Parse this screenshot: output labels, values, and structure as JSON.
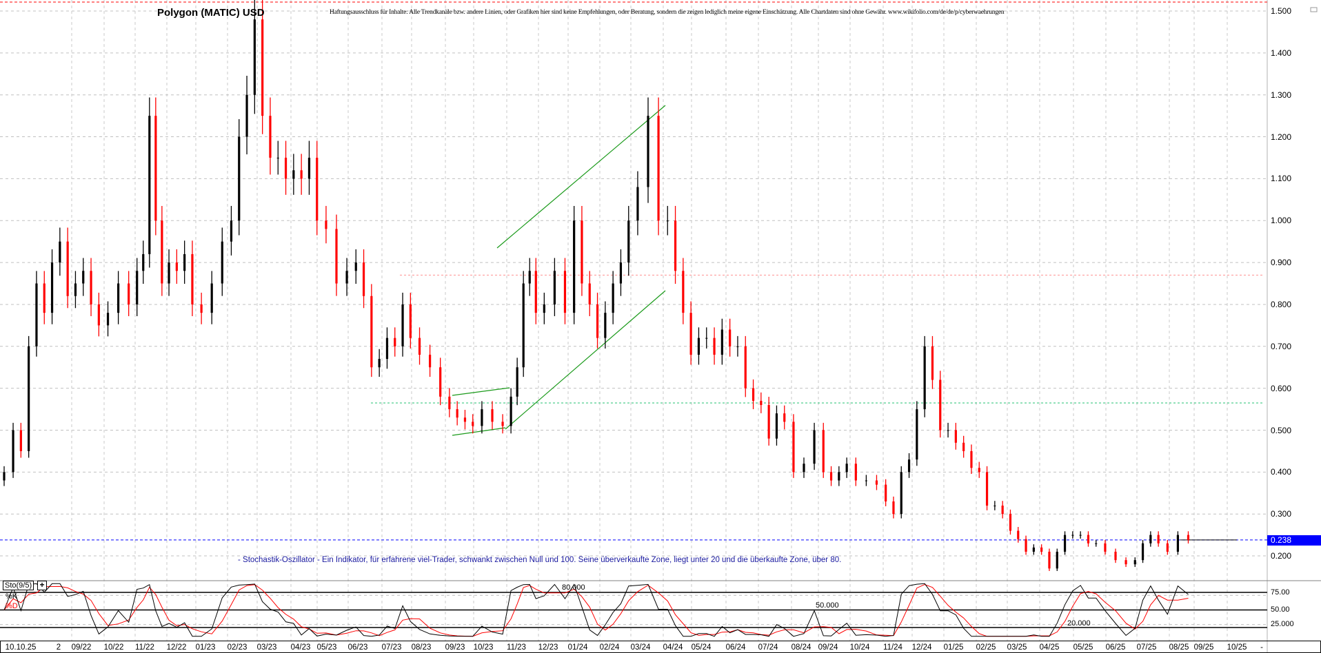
{
  "title": "Polygon (MATIC) USD",
  "disclaimer": "Haftungsausschluss für Inhalte: Alle Trendkanäle bzw. andere Linien, oder Grafiken hier sind keine Empfehlungen, oder Beratung, sondern die zeigen lediglich meine eigene Einschätzung. Alle Chartdaten sind ohne Gewähr.  www.wikifolio.com/de/de/p/cyberwaehrungen",
  "note": "- Stochastik-Oszillator - Ein Indikator, für erfahrene viel-Trader, schwankt zwischen Null und 100. Seine überverkaufte Zone, liegt unter 20 und die überkaufte Zone, über 80.",
  "current_price": "0.238",
  "colors": {
    "up": "#000000",
    "down": "#ff0000",
    "current_line": "#0000ff",
    "trend": "#1a9a1a",
    "resistance": "#ff4040",
    "support": "#20c070",
    "k_line": "#000000",
    "d_line": "#ff0000"
  },
  "stochastic": {
    "label": "Sto(9/5)",
    "k_label": "%K",
    "d_label": "%D",
    "level_80": "80.000",
    "level_50": "50.000",
    "level_20": "20.000",
    "axis": [
      "75.00",
      "50.00",
      "25.000"
    ]
  },
  "x_axis_labels": [
    "10.10.25",
    "2",
    "09/22",
    "10/22",
    "11/22",
    "12/22",
    "01/23",
    "02/23",
    "03/23",
    "04/23",
    "05/23",
    "06/23",
    "07/23",
    "08/23",
    "09/23",
    "10/23",
    "11/23",
    "12/23",
    "01/24",
    "02/24",
    "03/24",
    "04/24",
    "05/24",
    "06/24",
    "07/24",
    "08/24",
    "09/24",
    "10/24",
    "11/24",
    "12/24",
    "01/25",
    "02/25",
    "03/25",
    "04/25",
    "05/25",
    "06/25",
    "07/25",
    "08/25",
    "09/25",
    "10/25",
    "-"
  ],
  "chart_data": {
    "type": "candlestick",
    "title": "Polygon (MATIC) USD",
    "y_ticks": [
      "1.500",
      "1.400",
      "1.300",
      "1.200",
      "1.100",
      "1.000",
      "0.900",
      "0.800",
      "0.700",
      "0.600",
      "0.500",
      "0.400",
      "0.300",
      "0.200"
    ],
    "ylim": [
      0.2,
      1.5
    ],
    "grid": true,
    "horizontal_lines": [
      0.87,
      0.565,
      0.238
    ],
    "closes_by_month": [
      {
        "month": "06/22",
        "closes": [
          0.4
        ]
      },
      {
        "month": "07/22",
        "closes": [
          0.5,
          0.45,
          0.7,
          0.85
        ]
      },
      {
        "month": "08/22",
        "closes": [
          0.78,
          0.9,
          0.95,
          0.82
        ]
      },
      {
        "month": "09/22",
        "closes": [
          0.85,
          0.88,
          0.8,
          0.75
        ]
      },
      {
        "month": "10/22",
        "closes": [
          0.78,
          0.85,
          0.8
        ]
      },
      {
        "month": "11/22",
        "closes": [
          0.88,
          0.92,
          1.25,
          1.0,
          0.85
        ]
      },
      {
        "month": "12/22",
        "closes": [
          0.9,
          0.88,
          0.92,
          0.8
        ]
      },
      {
        "month": "01/23",
        "closes": [
          0.78,
          0.85,
          0.95
        ]
      },
      {
        "month": "02/23",
        "closes": [
          1.0,
          1.2,
          1.3,
          1.48
        ]
      },
      {
        "month": "03/23",
        "closes": [
          1.25,
          1.15,
          1.15,
          1.1
        ]
      },
      {
        "month": "04/23",
        "closes": [
          1.12,
          1.1,
          1.15,
          1.0
        ]
      },
      {
        "month": "05/23",
        "closes": [
          0.98,
          0.85,
          0.88
        ]
      },
      {
        "month": "06/23",
        "closes": [
          0.9,
          0.82,
          0.65,
          0.67
        ]
      },
      {
        "month": "07/23",
        "closes": [
          0.72,
          0.7,
          0.8,
          0.72
        ]
      },
      {
        "month": "08/23",
        "closes": [
          0.68,
          0.65,
          0.58
        ]
      },
      {
        "month": "09/23",
        "closes": [
          0.55,
          0.53,
          0.52,
          0.51
        ]
      },
      {
        "month": "10/23",
        "closes": [
          0.55,
          0.52,
          0.51
        ]
      },
      {
        "month": "11/23",
        "closes": [
          0.58,
          0.65,
          0.85,
          0.88,
          0.78
        ]
      },
      {
        "month": "12/23",
        "closes": [
          0.8,
          0.88,
          0.78
        ]
      },
      {
        "month": "01/24",
        "closes": [
          1.0,
          0.85,
          0.8,
          0.72
        ]
      },
      {
        "month": "02/24",
        "closes": [
          0.78,
          0.85,
          0.9,
          1.0
        ]
      },
      {
        "month": "03/24",
        "closes": [
          1.08,
          1.25,
          1.0
        ]
      },
      {
        "month": "04/24",
        "closes": [
          1.0,
          0.88,
          0.78,
          0.68
        ]
      },
      {
        "month": "05/24",
        "closes": [
          0.72,
          0.72,
          0.68,
          0.74
        ]
      },
      {
        "month": "06/24",
        "closes": [
          0.7,
          0.7,
          0.6,
          0.57
        ]
      },
      {
        "month": "07/24",
        "closes": [
          0.56,
          0.48,
          0.54,
          0.52
        ]
      },
      {
        "month": "08/24",
        "closes": [
          0.4,
          0.42,
          0.5
        ]
      },
      {
        "month": "09/24",
        "closes": [
          0.4,
          0.38,
          0.4,
          0.42
        ]
      },
      {
        "month": "10/24",
        "closes": [
          0.38,
          0.38,
          0.37
        ]
      },
      {
        "month": "11/24",
        "closes": [
          0.33,
          0.3,
          0.4,
          0.43
        ]
      },
      {
        "month": "12/24",
        "closes": [
          0.55,
          0.7,
          0.62,
          0.5
        ]
      },
      {
        "month": "01/25",
        "closes": [
          0.5,
          0.47,
          0.45,
          0.41
        ]
      },
      {
        "month": "02/25",
        "closes": [
          0.4,
          0.32,
          0.32,
          0.3
        ]
      },
      {
        "month": "03/25",
        "closes": [
          0.26,
          0.24,
          0.21,
          0.22
        ]
      },
      {
        "month": "04/25",
        "closes": [
          0.21,
          0.17,
          0.21,
          0.25
        ]
      },
      {
        "month": "05/25",
        "closes": [
          0.25,
          0.25,
          0.23,
          0.23
        ]
      },
      {
        "month": "06/25",
        "closes": [
          0.21,
          0.19,
          0.18
        ]
      },
      {
        "month": "07/25",
        "closes": [
          0.19,
          0.23,
          0.25,
          0.23
        ]
      },
      {
        "month": "08/25",
        "closes": [
          0.21,
          0.25,
          0.238
        ]
      }
    ]
  }
}
